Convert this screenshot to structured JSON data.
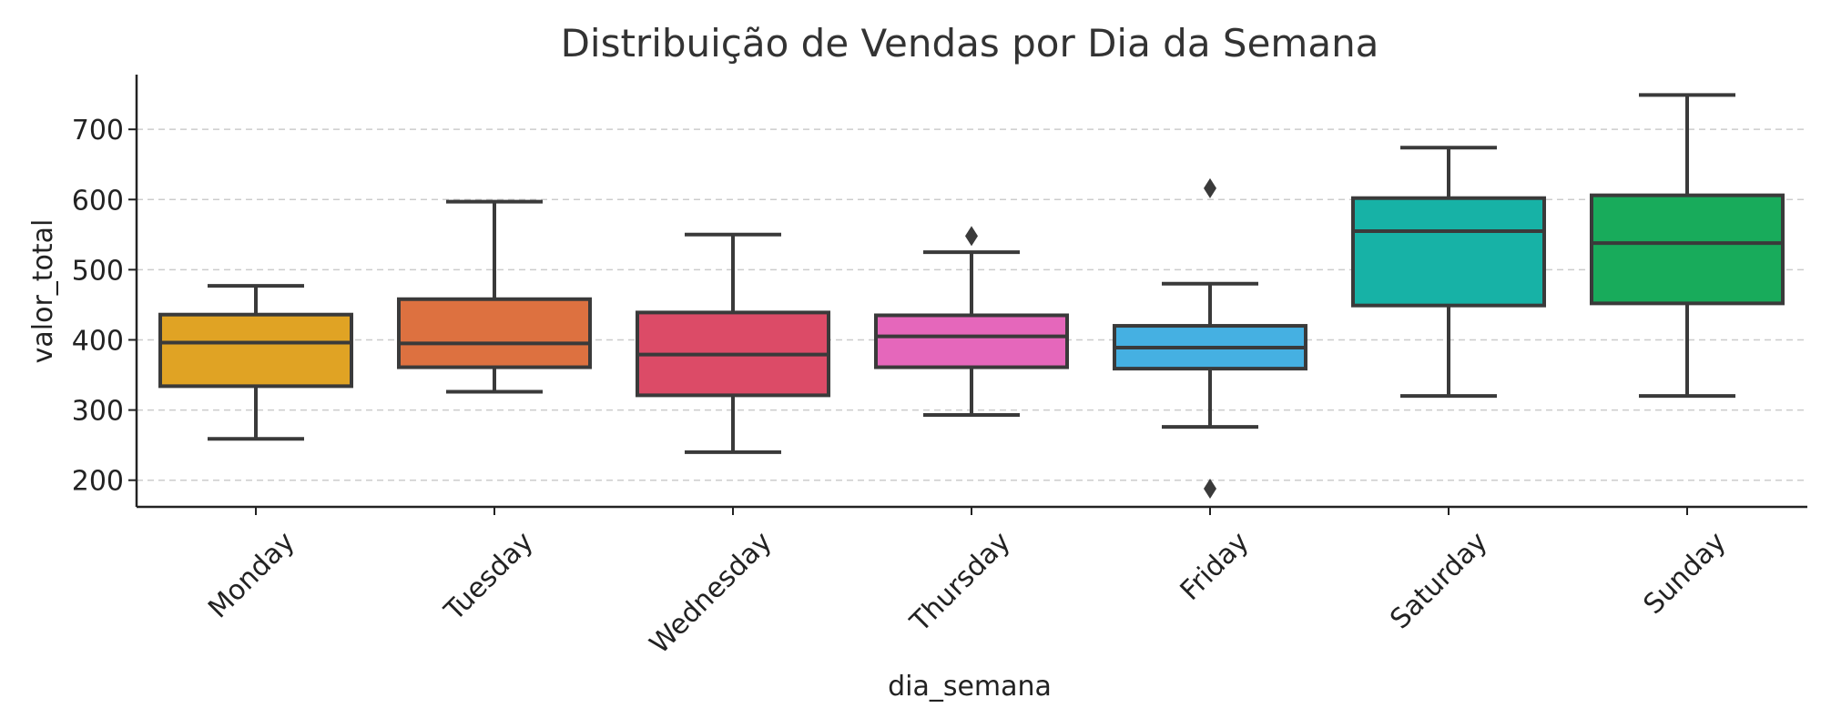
{
  "chart_data": {
    "type": "box",
    "title": "Distribuição de Vendas por Dia da Semana",
    "xlabel": "dia_semana",
    "ylabel": "valor_total",
    "ylim": [
      162,
      778
    ],
    "yticks": [
      200,
      300,
      400,
      500,
      600,
      700
    ],
    "grid": "y dashed",
    "categories": [
      "Monday",
      "Tuesday",
      "Wednesday",
      "Thursday",
      "Friday",
      "Saturday",
      "Sunday"
    ],
    "colors": [
      "#e0a324",
      "#dd7140",
      "#dc4b67",
      "#e567bb",
      "#45b0e2",
      "#17b2a6",
      "#18ab5b"
    ],
    "boxes": [
      {
        "whislo": 259,
        "q1": 334,
        "median": 396,
        "q3": 436,
        "whishi": 477,
        "fliers": []
      },
      {
        "whislo": 326,
        "q1": 361,
        "median": 395,
        "q3": 458,
        "whishi": 597,
        "fliers": []
      },
      {
        "whislo": 240,
        "q1": 321,
        "median": 379,
        "q3": 439,
        "whishi": 550,
        "fliers": []
      },
      {
        "whislo": 293,
        "q1": 361,
        "median": 405,
        "q3": 435,
        "whishi": 525,
        "fliers": [
          548
        ]
      },
      {
        "whislo": 276,
        "q1": 359,
        "median": 389,
        "q3": 420,
        "whishi": 480,
        "fliers": [
          616,
          188
        ]
      },
      {
        "whislo": 320,
        "q1": 449,
        "median": 555,
        "q3": 602,
        "whishi": 674,
        "fliers": []
      },
      {
        "whislo": 320,
        "q1": 452,
        "median": 538,
        "q3": 606,
        "whishi": 749,
        "fliers": []
      }
    ]
  }
}
